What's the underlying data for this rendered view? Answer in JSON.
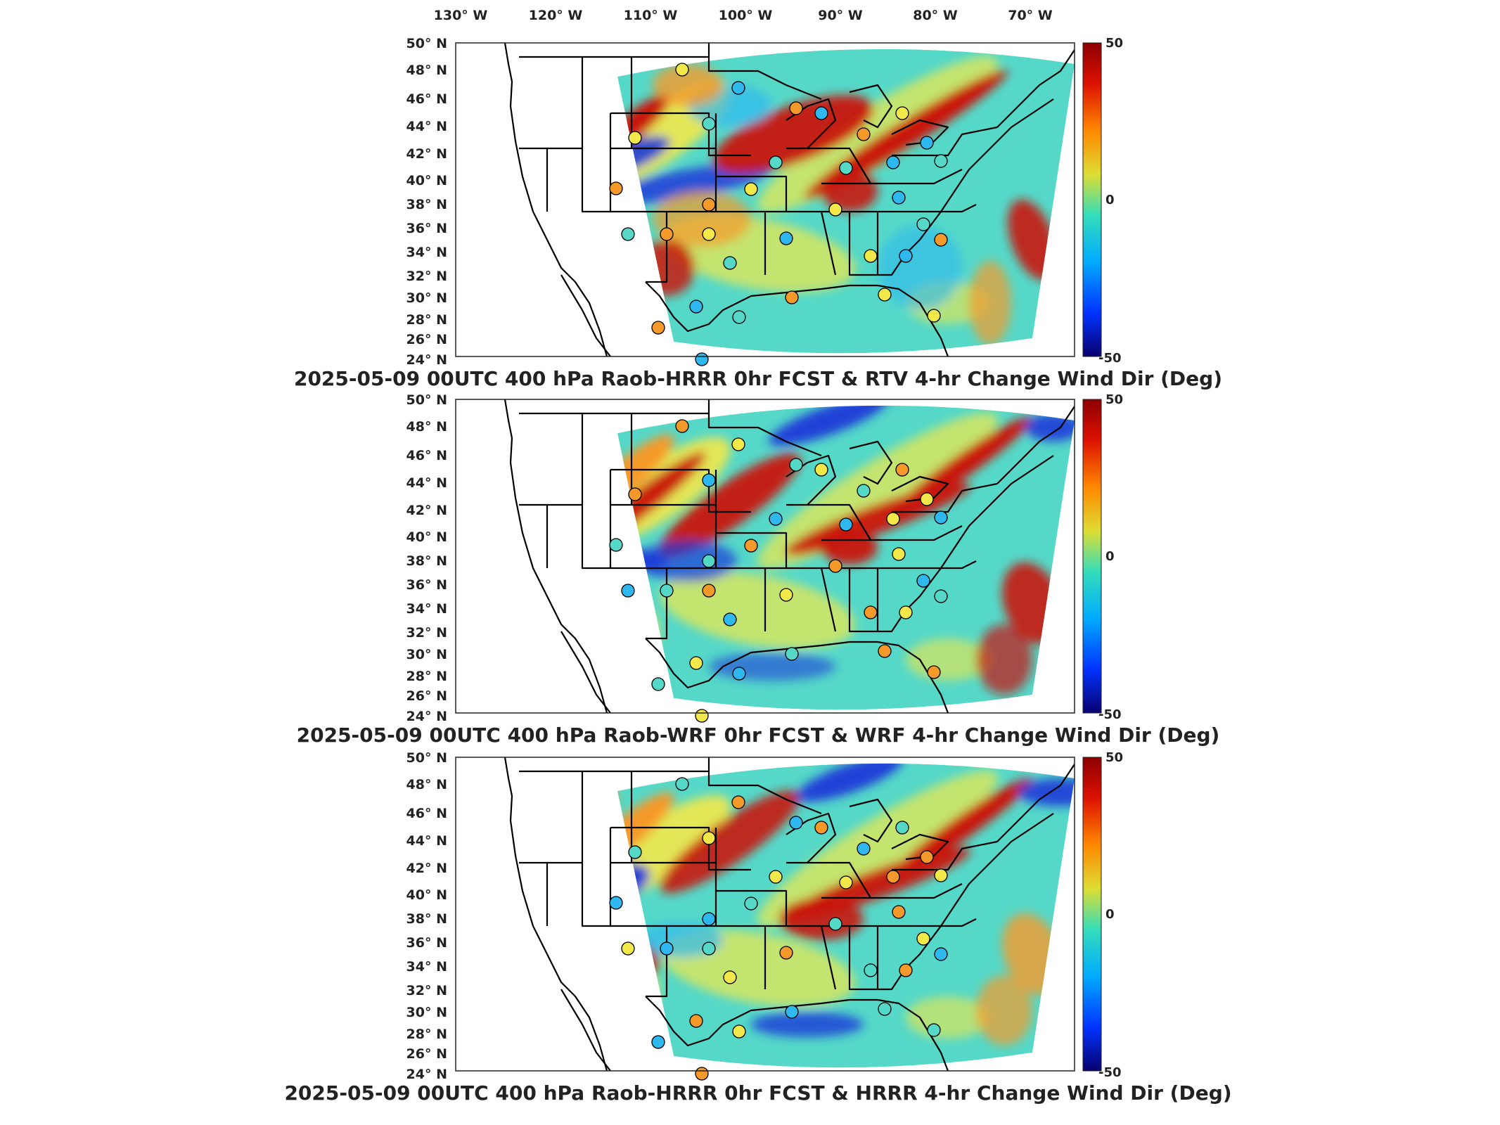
{
  "lon_labels": [
    "130° W",
    "120° W",
    "110° W",
    "100° W",
    "90° W",
    "80° W",
    "70° W"
  ],
  "lat_labels": [
    "50° N",
    "48° N",
    "46° N",
    "44° N",
    "42° N",
    "40° N",
    "38° N",
    "36° N",
    "34° N",
    "32° N",
    "30° N",
    "28° N",
    "26° N",
    "24° N"
  ],
  "colorbar": {
    "max": "50",
    "mid": "0",
    "min": "-50",
    "colors": [
      "#08006e",
      "#0033ff",
      "#00aaff",
      "#33ddbb",
      "#dddd33",
      "#ff8800",
      "#dd1100",
      "#8c0000"
    ]
  },
  "field_colors": {
    "background": "#55d8c8",
    "yellow": "#f2e84a",
    "orange": "#f59a2a",
    "red": "#c8140c",
    "blue": "#1c3ad8",
    "cyan": "#2fb8ef"
  },
  "panels": [
    {
      "title": "2025-05-09 00UTC 400 hPa Raob-HRRR 0hr FCST & RTV 4-hr Change Wind Dir (Deg)"
    },
    {
      "title": "2025-05-09 00UTC 400 hPa Raob-WRF 0hr FCST & WRF 4-hr Change Wind Dir (Deg)"
    },
    {
      "title": "2025-05-09 00UTC 400 hPa Raob-HRRR 0hr FCST & HRRR 4-hr Change Wind Dir (Deg)"
    }
  ]
}
